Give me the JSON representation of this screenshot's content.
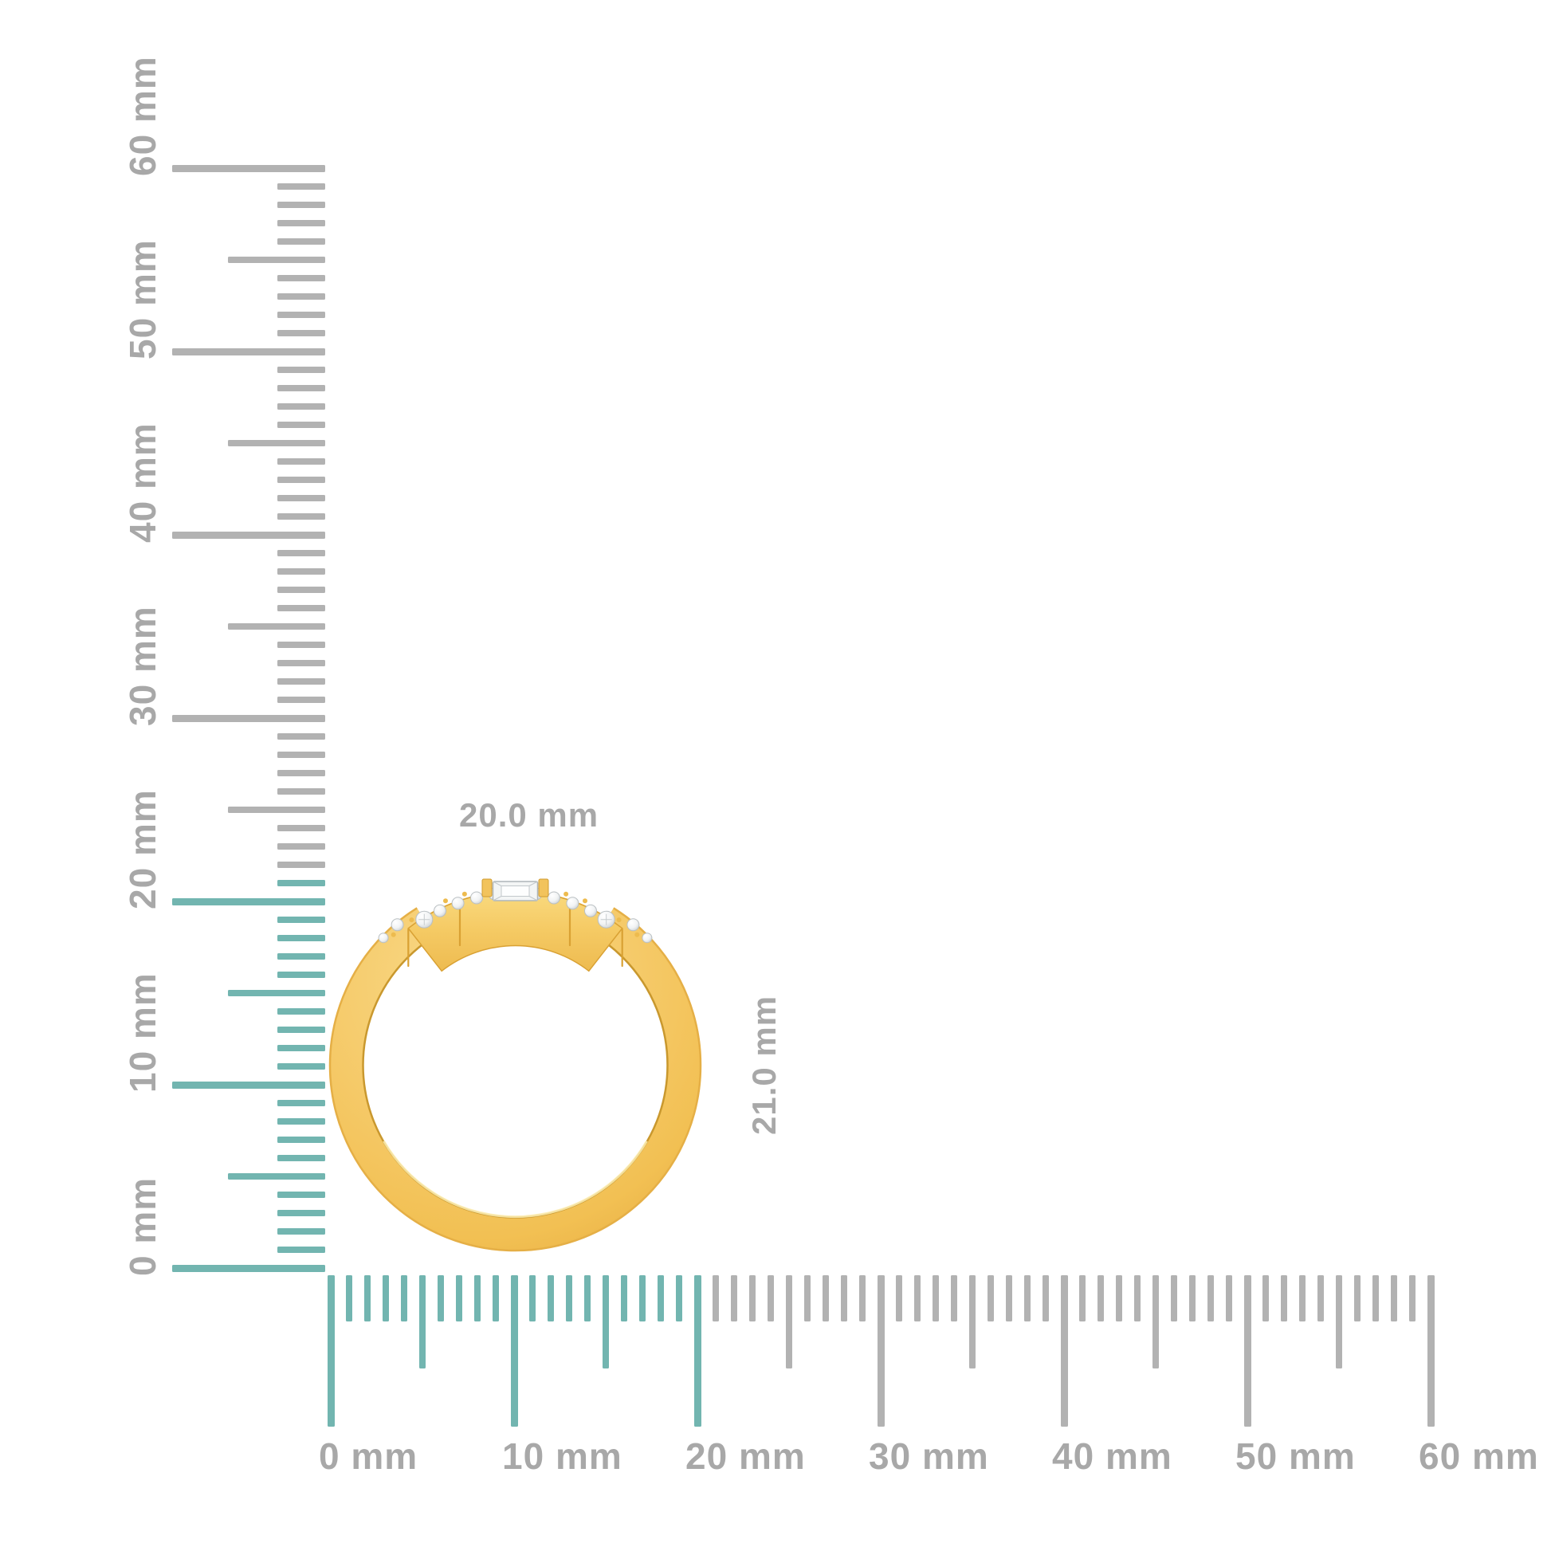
{
  "dimensions": {
    "width_label": "20.0 mm",
    "height_label": "21.0 mm",
    "width_mm": 20.0,
    "height_mm": 21.0
  },
  "rulers": {
    "unit": "mm",
    "min_mm": 0,
    "max_mm": 60,
    "major_step_mm": 10,
    "mid_step_mm": 5,
    "minor_step_mm": 1,
    "vertical": {
      "labels": [
        "0 mm",
        "10 mm",
        "20 mm",
        "30 mm",
        "40 mm",
        "50 mm",
        "60 mm"
      ],
      "highlight_extent_mm": 21
    },
    "horizontal": {
      "labels": [
        "0 mm",
        "10 mm",
        "20 mm",
        "30 mm",
        "40 mm",
        "50 mm",
        "60 mm"
      ],
      "highlight_extent_mm": 20
    }
  },
  "colors": {
    "highlight_teal": "#72B5B0",
    "tick_gray": "#B2B2B2",
    "label_gray": "#A8A8A8",
    "gold": "#F5C967",
    "gold_light": "#FADC82",
    "gold_dark": "#D9A133",
    "gold_deep": "#C9982E",
    "diamond_white": "#F3F5F5",
    "diamond_edge": "#B9BFC2",
    "background": "#FFFFFF"
  },
  "object": {
    "type": "ring",
    "description": "yellow gold ring, front view, diamond-set head with center baguette and round accent diamonds"
  }
}
